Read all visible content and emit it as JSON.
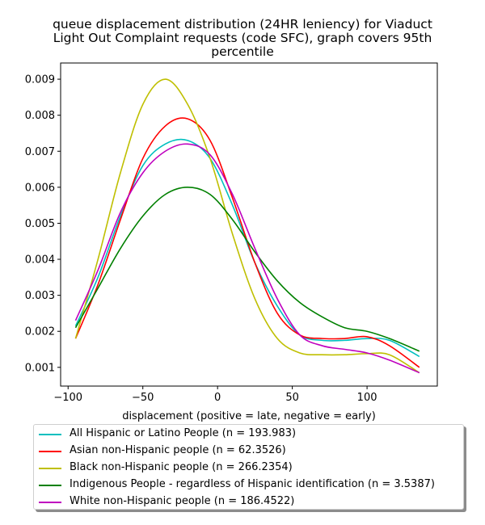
{
  "chart_data": {
    "type": "line",
    "title_lines": [
      "queue displacement distribution (24HR leniency) for Viaduct",
      "Light Out Complaint  requests (code SFC), graph covers 95th",
      "percentile"
    ],
    "xlabel": "displacement (positive = late, negative = early)",
    "ylabel": "",
    "xlim": [
      -105,
      147
    ],
    "ylim": [
      0.00048,
      0.00945
    ],
    "xticks": [
      -100,
      -50,
      0,
      50,
      100
    ],
    "xtick_labels": [
      "−100",
      "−50",
      "0",
      "50",
      "100"
    ],
    "yticks": [
      0.001,
      0.002,
      0.003,
      0.004,
      0.005,
      0.006,
      0.007,
      0.008,
      0.009
    ],
    "ytick_labels": [
      "0.001",
      "0.002",
      "0.003",
      "0.004",
      "0.005",
      "0.006",
      "0.007",
      "0.008",
      "0.009"
    ],
    "grid": false,
    "legend_placement": "below",
    "x": [
      -95,
      -80,
      -65,
      -50,
      -35,
      -20,
      -5,
      10,
      25,
      40,
      55,
      70,
      85,
      100,
      115,
      135
    ],
    "series": [
      {
        "name": "All Hispanic or Latino People (n = 193.983)",
        "color": "#00bfbf",
        "values": [
          0.00215,
          0.0035,
          0.0052,
          0.0066,
          0.0072,
          0.0073,
          0.0068,
          0.0055,
          0.0039,
          0.0027,
          0.0019,
          0.00175,
          0.00175,
          0.0018,
          0.00175,
          0.0013
        ]
      },
      {
        "name": "Asian non-Hispanic people (n = 62.3526)",
        "color": "#ff0000",
        "values": [
          0.0018,
          0.0033,
          0.0051,
          0.0068,
          0.0077,
          0.0079,
          0.0073,
          0.0057,
          0.0039,
          0.0025,
          0.0019,
          0.0018,
          0.0018,
          0.00185,
          0.0016,
          0.001
        ]
      },
      {
        "name": "Black non-Hispanic people (n = 266.2354)",
        "color": "#bfbf00",
        "values": [
          0.0018,
          0.004,
          0.0064,
          0.0083,
          0.009,
          0.0083,
          0.0068,
          0.0047,
          0.0029,
          0.0018,
          0.0014,
          0.00135,
          0.00135,
          0.00138,
          0.00135,
          0.00085
        ]
      },
      {
        "name": "Indigenous People - regardless of Hispanic identification (n = 3.5387)",
        "color": "#008000",
        "values": [
          0.0021,
          0.0032,
          0.0043,
          0.0052,
          0.0058,
          0.006,
          0.0058,
          0.0051,
          0.0042,
          0.0034,
          0.0028,
          0.0024,
          0.0021,
          0.002,
          0.0018,
          0.00145
        ]
      },
      {
        "name": "White non-Hispanic people (n = 186.4522)",
        "color": "#bf00bf",
        "values": [
          0.0023,
          0.0037,
          0.0053,
          0.0064,
          0.007,
          0.0072,
          0.0069,
          0.0058,
          0.0043,
          0.0029,
          0.0019,
          0.0016,
          0.0015,
          0.0014,
          0.0012,
          0.00085
        ]
      }
    ]
  }
}
